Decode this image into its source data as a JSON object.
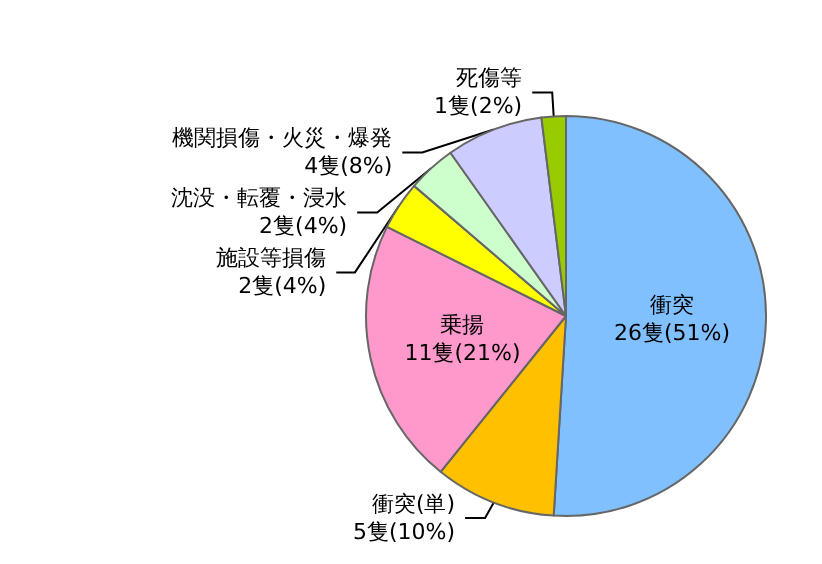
{
  "chart_data": {
    "type": "pie",
    "categories": [
      "衝突",
      "衝突(単)",
      "乗揚",
      "施設等損傷",
      "沈没・転覆・浸水",
      "機関損傷・火災・爆発",
      "死傷等"
    ],
    "values": [
      26,
      5,
      11,
      2,
      2,
      4,
      1
    ],
    "value_labels": [
      "26隻(51%)",
      "5隻(10%)",
      "11隻(21%)",
      "2隻(4%)",
      "2隻(4%)",
      "4隻(8%)",
      "1隻(2%)"
    ],
    "colors": [
      "#80c0ff",
      "#ffc000",
      "#ff99cc",
      "#ffff00",
      "#ccffcc",
      "#ccccff",
      "#99cc00"
    ],
    "legend": false
  }
}
